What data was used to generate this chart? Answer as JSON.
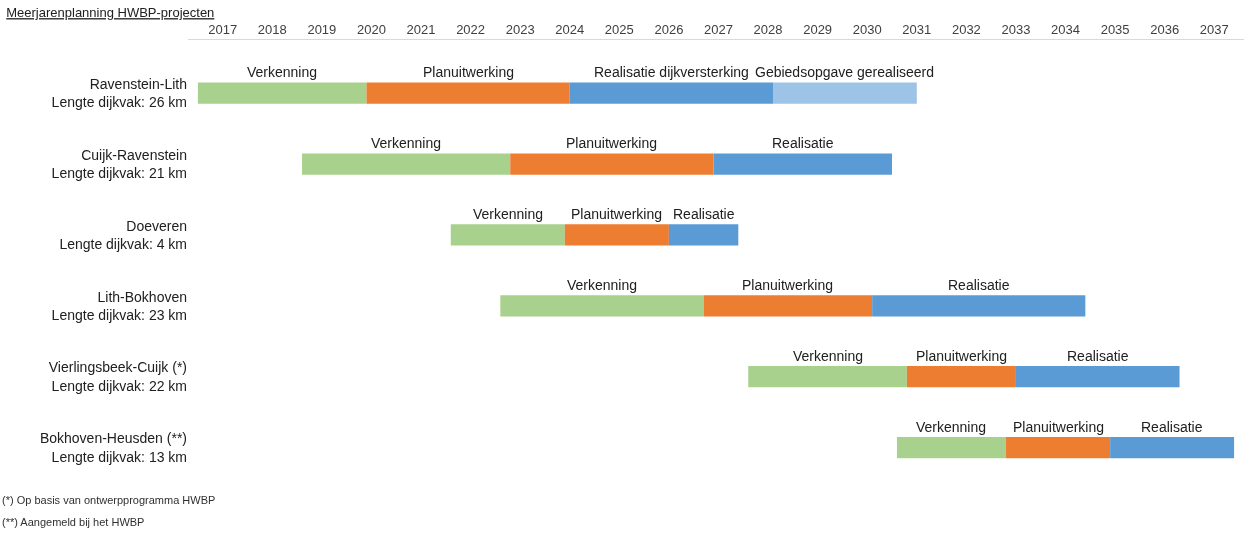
{
  "chart_data": {
    "type": "bar",
    "orientation": "horizontal",
    "title": "Meerjarenplanning HWBP-projecten",
    "categories": [
      "Ravenstein-Lith\nLengte dijkvak: 26 km",
      "Cuijk-Ravenstein\nLengte dijkvak: 21 km",
      "Doeveren\nLengte dijkvak: 4 km",
      "Lith-Bokhoven\nLengte dijkvak: 23 km",
      "Vierlingsbeek-Cuijk (*)\nLengte dijkvak: 22 km",
      "Bokhoven-Heusden (**)\nLengte dijkvak: 13 km"
    ],
    "series": [
      {
        "color": "#a9d18e",
        "base": [
          2016.5,
          2018.6,
          2021.6,
          2022.6,
          2027.6,
          2030.6
        ],
        "values": [
          3.4,
          4.2,
          2.3,
          4.1,
          3.2,
          2.2
        ],
        "value_labels": [
          "Verkenning",
          "Verkenning",
          "Verkenning",
          "Verkenning",
          "Verkenning",
          "Verkenning"
        ]
      },
      {
        "color": "#ed7d31",
        "base": [
          2019.9,
          2022.8,
          2023.9,
          2026.7,
          2030.8,
          2032.8
        ],
        "values": [
          4.1,
          4.1,
          2.1,
          3.4,
          2.2,
          2.1
        ],
        "value_labels": [
          "Planuitwerking",
          "Planuitwerking",
          "Planuitwerking",
          "Planuitwerking",
          "Planuitwerking",
          "Planuitwerking"
        ]
      },
      {
        "color": "#5b9bd5",
        "base": [
          2024.0,
          2026.9,
          2026.0,
          2030.1,
          2033.0,
          2034.9
        ],
        "values": [
          4.1,
          3.6,
          1.4,
          4.3,
          3.3,
          2.5
        ],
        "value_labels": [
          "Realisatie dijkversterking",
          "Realisatie",
          "Realisatie",
          "Realisatie",
          "Realisatie",
          "Realisatie"
        ]
      },
      {
        "color": "#9dc3e6",
        "base": [
          2028.1,
          null,
          null,
          null,
          null,
          null
        ],
        "values": [
          2.9,
          null,
          null,
          null,
          null,
          null
        ],
        "value_labels": [
          "Gebiedsopgave gerealiseerd",
          null,
          null,
          null,
          null,
          null
        ]
      }
    ],
    "xlim": [
      2016.3,
      2037.6
    ],
    "xticks": [
      2017,
      2018,
      2019,
      2020,
      2021,
      2022,
      2023,
      2024,
      2025,
      2026,
      2027,
      2028,
      2029,
      2030,
      2031,
      2032,
      2033,
      2034,
      2035,
      2036,
      2037
    ],
    "annotations": [
      "(*) Op basis van ontwerpprogramma HWBP",
      "(**) Aangemeld bij het HWBP"
    ]
  }
}
